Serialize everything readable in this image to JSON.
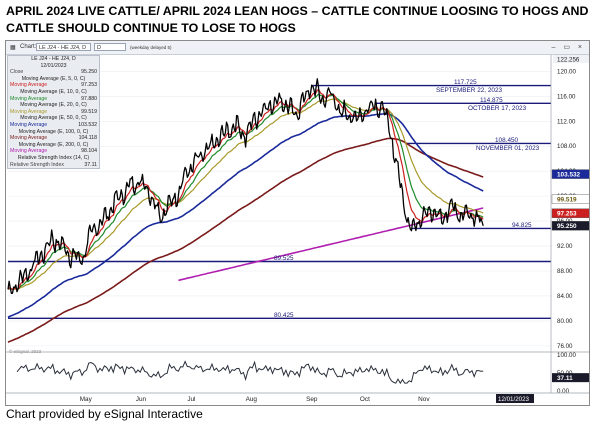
{
  "headline": "APRIL 2024 LIVE CATTLE/ APRIL 2024 LEAN HOGS –   CATTLE CONTINUE LOOSING TO HOGS AND CATTLE SHOULD CONTINUE TO LOSE TO HOGS",
  "credit": "Chart provided by eSignal Interactive",
  "toolbar": {
    "chart_label": "Chart:",
    "symbol": "LE J24 - HE J24, D",
    "interval": "D",
    "delayed": "(weekday delayed 5)"
  },
  "legend": {
    "symbol": "LE J24 - HE J24, D",
    "date": "12/01/2023",
    "rows": [
      {
        "k": "Close",
        "v": "95.250",
        "color": "#444444"
      },
      {
        "k": "Moving Average (E, 5, 0, C)",
        "v": "",
        "color": "#222222",
        "center": true
      },
      {
        "k": "Moving Average",
        "v": "97.253",
        "color": "#cc2020"
      },
      {
        "k": "Moving Average (E, 10, 0, C)",
        "v": "",
        "color": "#222222",
        "center": true
      },
      {
        "k": "Moving Average",
        "v": "97.880",
        "color": "#1f8a2a"
      },
      {
        "k": "Moving Average (E, 20, 0, C)",
        "v": "",
        "color": "#222222",
        "center": true
      },
      {
        "k": "Moving Average",
        "v": "99.519",
        "color": "#a89a2a"
      },
      {
        "k": "Moving Average (E, 50, 0, C)",
        "v": "",
        "color": "#222222",
        "center": true
      },
      {
        "k": "Moving Average",
        "v": "103.532",
        "color": "#1a2a9a"
      },
      {
        "k": "Moving Average (E, 100, 0, C)",
        "v": "",
        "color": "#222222",
        "center": true
      },
      {
        "k": "Moving Average",
        "v": "104.118",
        "color": "#7a1a1a"
      },
      {
        "k": "Moving Average (E, 200, 0, C)",
        "v": "",
        "color": "#222222",
        "center": true
      },
      {
        "k": "Moving Average",
        "v": "98.104",
        "color": "#b020b0"
      },
      {
        "k": "Relative Strength Index (14, C)",
        "v": "",
        "color": "#222222",
        "center": true
      },
      {
        "k": "Relative Strength Index",
        "v": "37.11",
        "color": "#444444"
      }
    ]
  },
  "chart_data": {
    "type": "line",
    "title": "LE J24 - HE J24, D",
    "x_labels": [
      "May",
      "Jun",
      "Jul",
      "Aug",
      "Sep",
      "Oct",
      "Nov",
      "12/01/2023"
    ],
    "y_ticks": [
      76.0,
      80.0,
      84.0,
      88.0,
      92.0,
      96.0,
      100.0,
      104.0,
      108.0,
      112.0,
      116.0,
      120.0
    ],
    "y_top_label": 122.256,
    "ylim": [
      75.5,
      122.3
    ],
    "x_range": [
      0,
      172
    ],
    "x_month_positions": [
      16,
      28.5,
      40,
      53,
      66.5,
      78.5,
      91.5
    ],
    "price_keypoints": [
      [
        0,
        84.5
      ],
      [
        4,
        87.5
      ],
      [
        8,
        91.2
      ],
      [
        10,
        93.2
      ],
      [
        12,
        92.1
      ],
      [
        14,
        90.6
      ],
      [
        16,
        89.8
      ],
      [
        17,
        90.6
      ],
      [
        18,
        93.5
      ],
      [
        21,
        96
      ],
      [
        24,
        99.2
      ],
      [
        27,
        101.5
      ],
      [
        29,
        102.5
      ],
      [
        31,
        101.5
      ],
      [
        33,
        98.5
      ],
      [
        34,
        96.8
      ],
      [
        36,
        98.5
      ],
      [
        38,
        100.8
      ],
      [
        40,
        104
      ],
      [
        43,
        106.3
      ],
      [
        46,
        108.5
      ],
      [
        49,
        110.5
      ],
      [
        51,
        111.5
      ],
      [
        53,
        109.5
      ],
      [
        55,
        112.5
      ],
      [
        58,
        114.5
      ],
      [
        61,
        115.5
      ],
      [
        64,
        113
      ],
      [
        66,
        115.5
      ],
      [
        68,
        117.725
      ],
      [
        70,
        115.5
      ],
      [
        72,
        116.5
      ],
      [
        74,
        113.5
      ],
      [
        76,
        113
      ],
      [
        78,
        112.5
      ],
      [
        80,
        114
      ],
      [
        82,
        114.875
      ],
      [
        84,
        113.5
      ],
      [
        85,
        111
      ],
      [
        87,
        104
      ],
      [
        89,
        96.5
      ],
      [
        90,
        94.825
      ],
      [
        92,
        96.5
      ],
      [
        94,
        98
      ],
      [
        95,
        97
      ],
      [
        97,
        96.5
      ],
      [
        99,
        98.5
      ],
      [
        101,
        97
      ],
      [
        103,
        97.5
      ],
      [
        104,
        96.5
      ],
      [
        106,
        95.25
      ]
    ],
    "late_x_scale": 1.0,
    "series": [
      {
        "name": "Close",
        "color": "#000000",
        "value": "95.250"
      },
      {
        "name": "Moving Average (E, 5, 0, C)",
        "color": "#cc2020",
        "value": "97.253",
        "period": 5
      },
      {
        "name": "Moving Average (E, 10, 0, C)",
        "color": "#1f8a2a",
        "value": "97.880",
        "period": 10
      },
      {
        "name": "Moving Average (E, 20, 0, C)",
        "color": "#a89a2a",
        "value": "99.519",
        "period": 20
      },
      {
        "name": "Moving Average (E, 50, 0, C)",
        "color": "#1a2a9a",
        "value": "103.532",
        "period": 50
      },
      {
        "name": "Moving Average (E, 100, 0, C)",
        "color": "#7a1a1a",
        "value": "104.118",
        "period": 100
      },
      {
        "name": "Moving Average (E, 200, 0, C)",
        "color": "#b020b0",
        "value": "98.104",
        "period": 200
      }
    ],
    "levels": [
      {
        "y": 117.725,
        "label": "117.725",
        "note": "SEPTEMBER 22, 2023",
        "x_start": 68
      },
      {
        "y": 114.875,
        "label": "114.875",
        "note": "OCTOBER 17, 2023",
        "x_start": 82
      },
      {
        "y": 108.45,
        "label": "108.450",
        "note": "NOVEMBER 01, 2023",
        "x_start": 89
      },
      {
        "y": 94.825,
        "label": "94.825",
        "note": "",
        "x_start": 90
      },
      {
        "y": 89.525,
        "label": "89.525",
        "note": "",
        "x_start": 0
      },
      {
        "y": 80.425,
        "label": "80.425",
        "note": "",
        "x_start": 0
      }
    ],
    "value_tags": [
      {
        "value": "103.532",
        "y": 103.532,
        "bg": "#1a2a9a",
        "fg": "#ffffff"
      },
      {
        "value": "99.519",
        "y": 99.519,
        "bg": "#ffffff",
        "fg": "#6a5a10"
      },
      {
        "value": "97.253",
        "y": 97.253,
        "bg": "#cc2020",
        "fg": "#ffffff"
      },
      {
        "value": "95.250",
        "y": 95.25,
        "bg": "#1a1a2a",
        "fg": "#ffffff"
      }
    ],
    "rsi": {
      "ticks": [
        100.0,
        50.0,
        0.0
      ],
      "last": "37.11",
      "ylim": [
        0,
        100
      ]
    },
    "watermark": "© eSignal, 2023"
  }
}
